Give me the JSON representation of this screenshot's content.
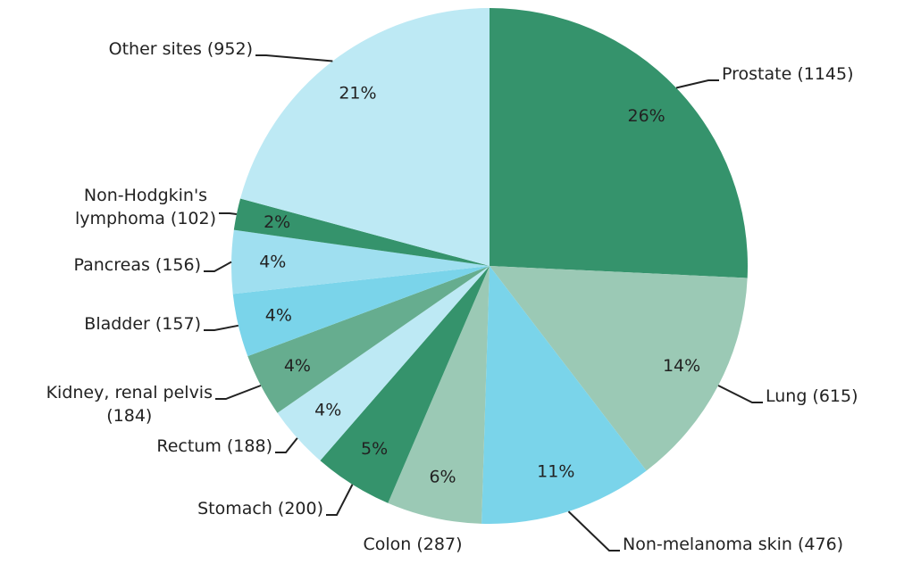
{
  "chart_data": {
    "type": "pie",
    "categories": [
      "Prostate (1145)",
      "Lung (615)",
      "Non-melanoma skin (476)",
      "Colon (287)",
      "Stomach (200)",
      "Rectum (188)",
      "Kidney, renal pelvis\n(184)",
      "Bladder (157)",
      "Pancreas (156)",
      "Non-Hodgkin's\nlymphoma  (102)",
      "Other sites (952)"
    ],
    "values": [
      26,
      14,
      11,
      6,
      5,
      4,
      4,
      4,
      4,
      2,
      21
    ],
    "value_labels": [
      "26%",
      "14%",
      "11%",
      "6%",
      "5%",
      "4%",
      "4%",
      "4%",
      "4%",
      "2%",
      "21%"
    ],
    "colors": [
      "#35936c",
      "#9bc9b5",
      "#7ad4ea",
      "#9bc9b5",
      "#35936c",
      "#bde9f4",
      "#66ad8f",
      "#7ad4ea",
      "#9fdff0",
      "#35936c",
      "#bde9f4"
    ]
  }
}
